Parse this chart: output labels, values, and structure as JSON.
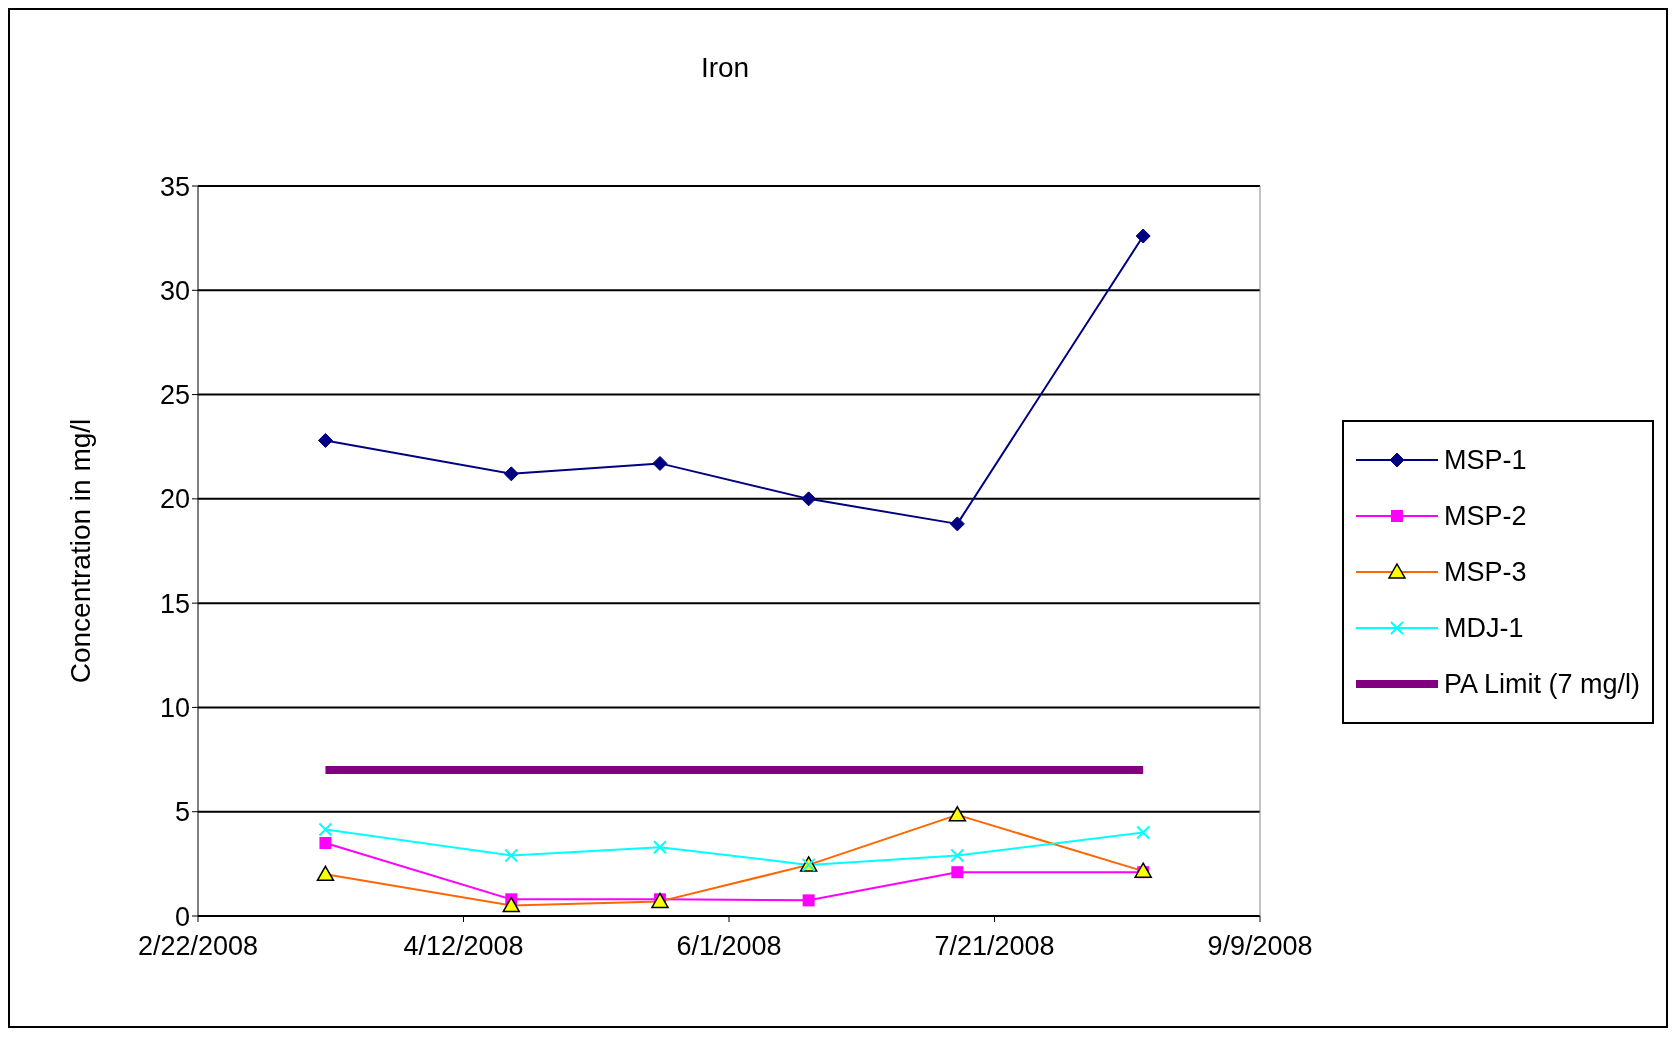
{
  "chart_data": {
    "type": "line",
    "title": "Iron",
    "ylabel": "Concentration in mg/l",
    "xlim": [
      "2008-02-22",
      "2008-09-09"
    ],
    "xticks": [
      {
        "value": "2008-02-22",
        "label": "2/22/2008"
      },
      {
        "value": "2008-04-12",
        "label": "4/12/2008"
      },
      {
        "value": "2008-06-01",
        "label": "6/1/2008"
      },
      {
        "value": "2008-07-21",
        "label": "7/21/2008"
      },
      {
        "value": "2008-09-09",
        "label": "9/9/2008"
      }
    ],
    "ylim": [
      0,
      35
    ],
    "yticks": [
      0,
      5,
      10,
      15,
      20,
      25,
      30,
      35
    ],
    "grid": "y",
    "legend": "right",
    "x": [
      "2008-03-17",
      "2008-04-21",
      "2008-05-19",
      "2008-06-16",
      "2008-07-14",
      "2008-08-18"
    ],
    "series": [
      {
        "name": "MSP-1",
        "color": "#000080",
        "marker": "diamond",
        "values": [
          22.8,
          21.2,
          21.7,
          20.0,
          18.8,
          32.6
        ]
      },
      {
        "name": "MSP-2",
        "color": "#ff00ff",
        "marker": "square",
        "values": [
          3.5,
          0.8,
          0.8,
          0.75,
          2.1,
          2.1
        ]
      },
      {
        "name": "MSP-3",
        "color": "#ff6600",
        "marker": "triangle",
        "values": [
          2.0,
          0.5,
          0.7,
          2.45,
          4.85,
          2.15
        ]
      },
      {
        "name": "MDJ-1",
        "color": "#00ffff",
        "marker": "cross",
        "values": [
          4.15,
          2.9,
          3.3,
          2.45,
          2.9,
          4.0
        ]
      },
      {
        "name": "PA Limit (7 mg/l)",
        "color": "#800080",
        "marker": "none",
        "x": [
          "2008-03-17",
          "2008-08-18"
        ],
        "values": [
          7,
          7
        ]
      }
    ]
  }
}
